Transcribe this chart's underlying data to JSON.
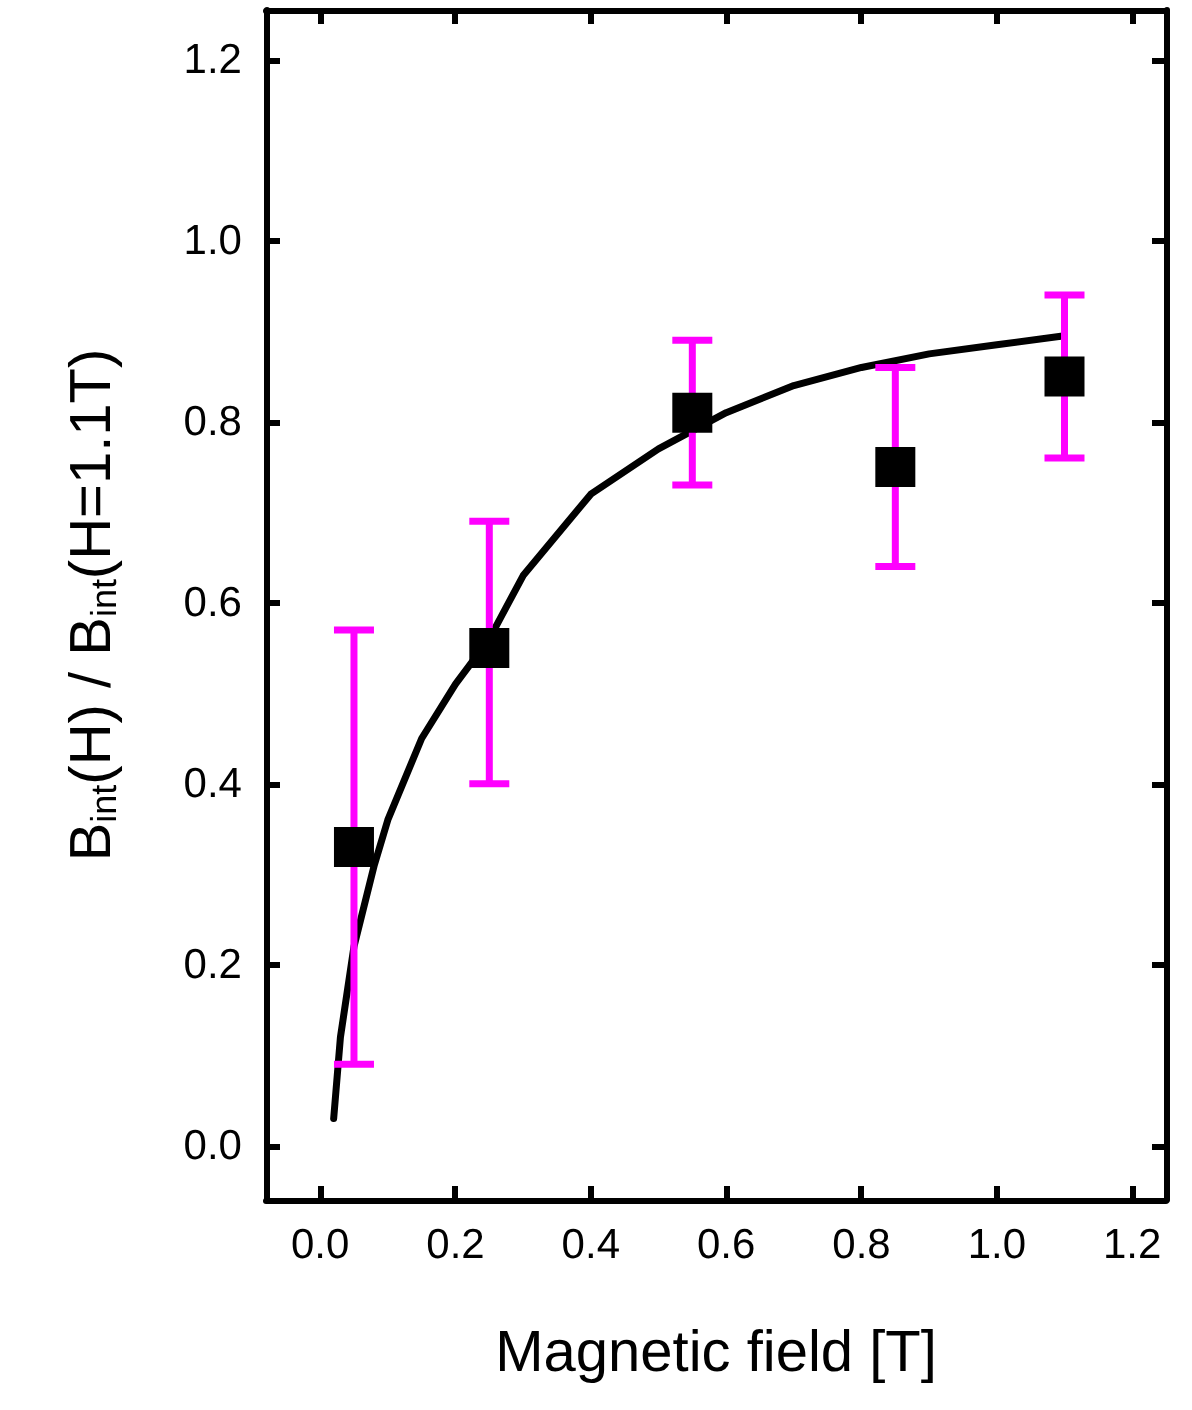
{
  "chart_data": {
    "type": "scatter",
    "xlabel": "Magnetic field [T]",
    "ylabel": "B$_{int}$(H) / B$_{int}$(H=1.1T)",
    "xlim": [
      -0.08,
      1.25
    ],
    "ylim": [
      -0.06,
      1.255
    ],
    "xticks": [
      {
        "value": 0,
        "label": "0.0"
      },
      0.2,
      0.4,
      0.6,
      0.8,
      {
        "value": 1,
        "label": "1.0"
      },
      1.2
    ],
    "yticks": [
      {
        "value": 0,
        "label": "0.0"
      },
      0.2,
      0.4,
      0.6,
      0.8,
      {
        "value": 1,
        "label": "1.0"
      },
      1.2
    ],
    "grid": false,
    "marker": "square",
    "series": [
      {
        "color": "#000000",
        "x": [
          0.05,
          0.25,
          0.55,
          0.85,
          1.1
        ],
        "values": [
          0.33,
          0.55,
          0.81,
          0.75,
          0.85
        ],
        "errors": [
          [
            0.09,
            0.57
          ],
          [
            0.4,
            0.69
          ],
          [
            0.73,
            0.89
          ],
          [
            0.64,
            0.86
          ],
          [
            0.76,
            0.94
          ]
        ]
      },
      {
        "type": "line",
        "color": "#000000",
        "marker": "none",
        "line_style": "solid",
        "x": [
          0.02,
          0.03,
          0.05,
          0.08,
          0.1,
          0.15,
          0.2,
          0.25,
          0.3,
          0.4,
          0.5,
          0.6,
          0.7,
          0.8,
          0.9,
          1.0,
          1.1
        ],
        "values": [
          0.03,
          0.12,
          0.22,
          0.31,
          0.36,
          0.45,
          0.51,
          0.56,
          0.63,
          0.72,
          0.77,
          0.81,
          0.84,
          0.86,
          0.875,
          0.885,
          0.895
        ]
      }
    ]
  }
}
